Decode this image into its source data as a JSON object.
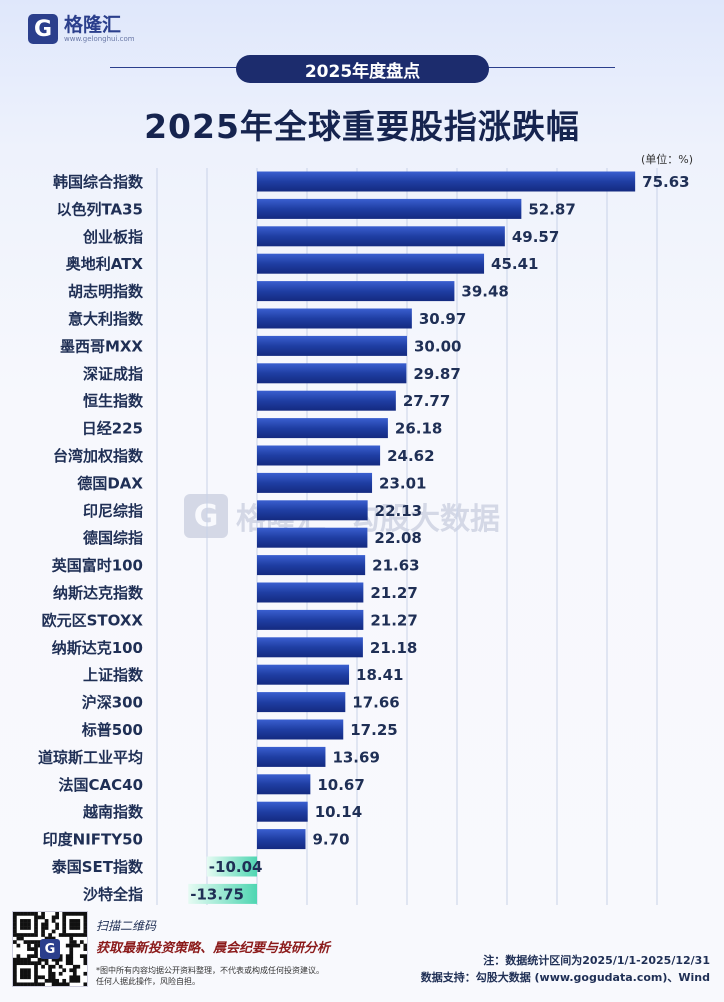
{
  "brand": {
    "name": "格隆汇",
    "url": "www.gelonghui.com",
    "mark": "G"
  },
  "badge": "2025年度盘点",
  "title": "2025年全球重要股指涨跌幅",
  "unit_label": "(单位：%)",
  "colors": {
    "positive_bar": "#1f3ea3",
    "negative_bar": "#5fe0c0",
    "grid": "#c8d2e8",
    "badge_bg": "#1c2c6d"
  },
  "watermark": {
    "name": "格隆汇",
    "sub": "勾股大数据",
    "sub_url": "www.gogudata.com"
  },
  "chart_data": {
    "type": "bar",
    "orientation": "horizontal",
    "categories": [
      "韩国综合指数",
      "以色列TA35",
      "创业板指",
      "奥地利ATX",
      "胡志明指数",
      "意大利指数",
      "墨西哥MXX",
      "深证成指",
      "恒生指数",
      "日经225",
      "台湾加权指数",
      "德国DAX",
      "印尼综指",
      "德国综指",
      "英国富时100",
      "纳斯达克指数",
      "欧元区STOXX",
      "纳斯达克100",
      "上证指数",
      "沪深300",
      "标普500",
      "道琼斯工业平均",
      "法国CAC40",
      "越南指数",
      "印度NIFTY50",
      "泰国SET指数",
      "沙特全指"
    ],
    "values": [
      75.63,
      52.87,
      49.57,
      45.41,
      39.48,
      30.97,
      30.0,
      29.87,
      27.77,
      26.18,
      24.62,
      23.01,
      22.13,
      22.08,
      21.63,
      21.27,
      21.27,
      21.18,
      18.41,
      17.66,
      17.25,
      13.69,
      10.67,
      10.14,
      9.7,
      -10.04,
      -13.75
    ],
    "value_labels": [
      "75.63",
      "52.87",
      "49.57",
      "45.41",
      "39.48",
      "30.97",
      "30.00",
      "29.87",
      "27.77",
      "26.18",
      "24.62",
      "23.01",
      "22.13",
      "22.08",
      "21.63",
      "21.27",
      "21.27",
      "21.18",
      "18.41",
      "17.66",
      "17.25",
      "13.69",
      "10.67",
      "10.14",
      "9.70",
      "-10.04",
      "-13.75"
    ],
    "xlim": [
      -20,
      80
    ],
    "grid": true
  },
  "footer": {
    "qr_mark": "G",
    "scan_text": "扫描二维码",
    "promo": "获取最新投资策略、晨会纪要与投研分析",
    "disclaimer_1": "*图中所有内容均据公开资料整理，不代表或构成任何投资建议。",
    "disclaimer_2": "任何人据此操作，风险自担。",
    "note": "注：数据统计区间为2025/1/1-2025/12/31",
    "source": "数据支持：勾股大数据 (www.gogudata.com)、Wind"
  }
}
